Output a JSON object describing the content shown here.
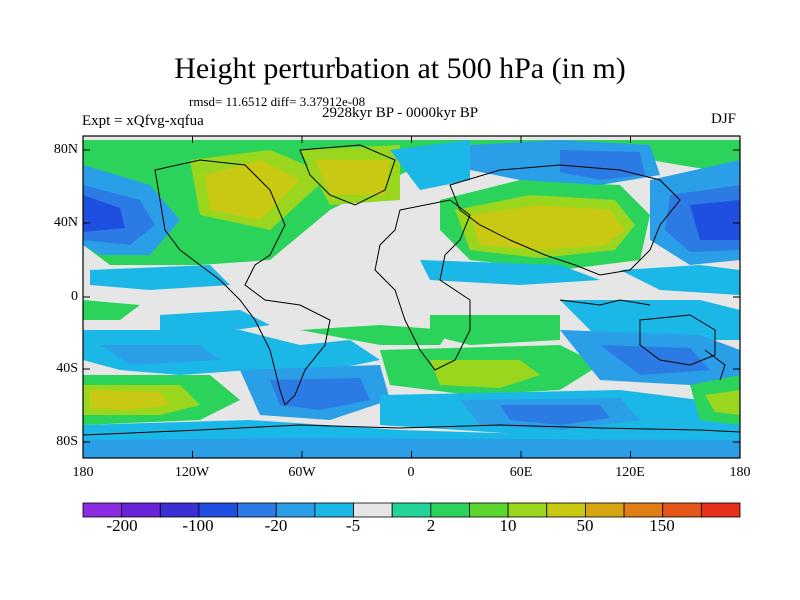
{
  "title": "Height perturbation at 500 hPa (in m)",
  "stats_line": "rmsd= 11.6512  diff= 3.37912e-08",
  "experiment": "Expt = xQfvg-xqfua",
  "period": "2928kyr BP - 0000kyr BP",
  "season": "DJF",
  "map": {
    "lon_range": [
      -180,
      180
    ],
    "lat_range": [
      -90,
      90
    ],
    "lat_labels": [
      "80N",
      "40N",
      "0",
      "40S",
      "80S"
    ],
    "lon_labels": [
      "180",
      "120W",
      "60W",
      "0",
      "60E",
      "120E",
      "180"
    ],
    "background_color": "#e6e6e6"
  },
  "colorbar": {
    "labels": [
      "-200",
      "-100",
      "-20",
      "-5",
      "2",
      "10",
      "50",
      "150"
    ],
    "colors": [
      "#8b2be2",
      "#6a22d8",
      "#3b2fd4",
      "#1f4fe0",
      "#2c7be5",
      "#2a9fe8",
      "#1bb7e6",
      "#e6e6e6",
      "#22d39a",
      "#2bd35b",
      "#5cd62e",
      "#9ad61e",
      "#c9c812",
      "#d6a512",
      "#e07d14",
      "#e5561a",
      "#e63019"
    ]
  }
}
